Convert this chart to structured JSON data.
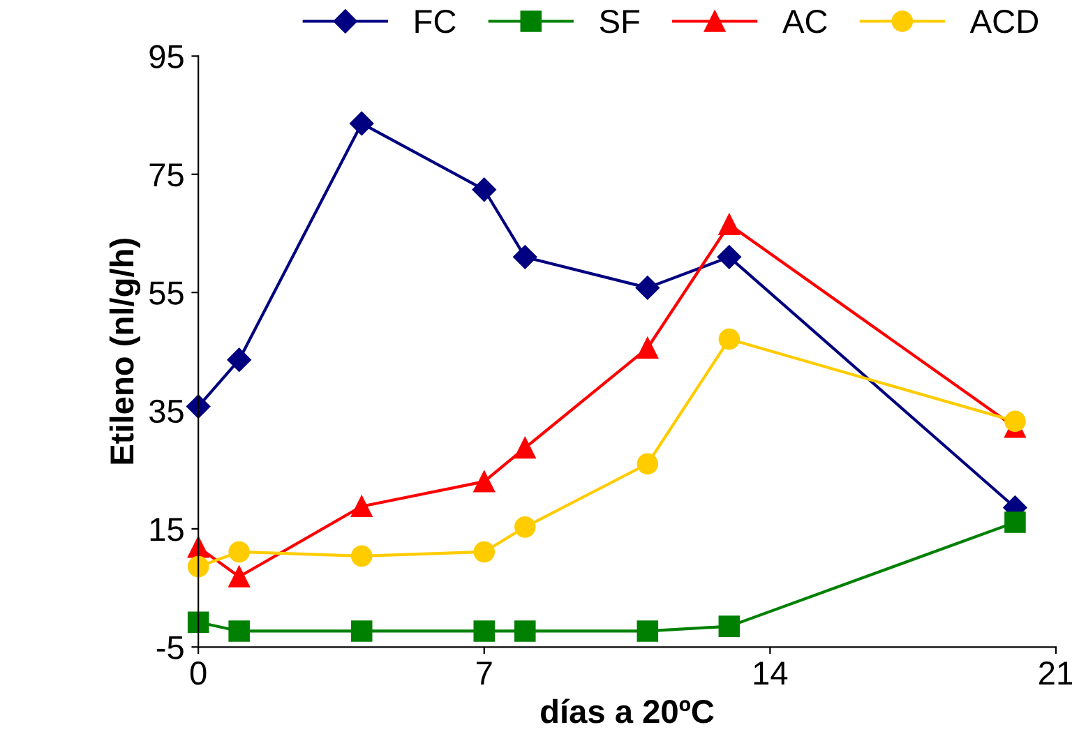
{
  "chart_data": {
    "type": "line",
    "xlabel": "días a 20ºC",
    "ylabel": "Etileno (nl/g/h)",
    "x": [
      0,
      1,
      4,
      7,
      8,
      11,
      13,
      20
    ],
    "xlim": [
      0,
      21
    ],
    "xticks": [
      0,
      7,
      14,
      21
    ],
    "ylim": [
      -5,
      95
    ],
    "yticks": [
      -5,
      15,
      35,
      55,
      75,
      95
    ],
    "grid": false,
    "legend": "top right",
    "series": [
      {
        "name": "FC",
        "color": "#000080",
        "marker": "diamond",
        "values": [
          35.7,
          43.6,
          83.6,
          72.4,
          61,
          55.8,
          61,
          18.6
        ]
      },
      {
        "name": "SF",
        "color": "#008000",
        "marker": "square",
        "values": [
          -0.8,
          -2.3,
          -2.3,
          -2.3,
          -2.3,
          -2.3,
          -1.5,
          16.1
        ]
      },
      {
        "name": "AC",
        "color": "#ff0000",
        "marker": "triangle",
        "values": [
          11.9,
          6.9,
          18.8,
          23,
          28.7,
          45.6,
          66.5,
          32.2
        ]
      },
      {
        "name": "ACD",
        "color": "#ffcc00",
        "marker": "circle",
        "values": [
          8.6,
          11.1,
          10.4,
          11.1,
          15.3,
          26,
          47.1,
          33.2
        ]
      }
    ]
  }
}
